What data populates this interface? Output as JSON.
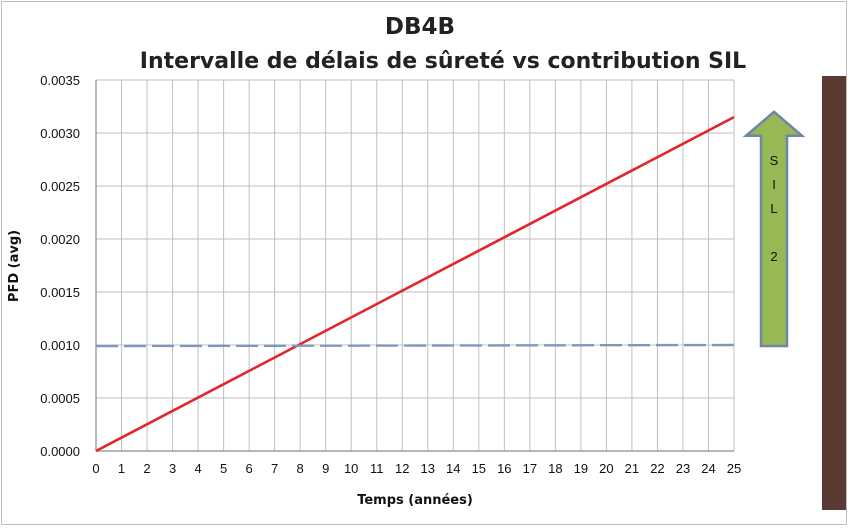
{
  "chart_data": {
    "type": "line",
    "title": "DB4B",
    "subtitle": "Intervalle de délais de sûreté vs contribution SIL",
    "xlabel": "Temps (années)",
    "ylabel": "PFD (avg)",
    "xlim": [
      0,
      25
    ],
    "ylim": [
      0,
      0.0035
    ],
    "x_ticks": [
      "0",
      "1",
      "2",
      "3",
      "4",
      "5",
      "6",
      "7",
      "8",
      "9",
      "10",
      "11",
      "12",
      "13",
      "14",
      "15",
      "16",
      "17",
      "18",
      "19",
      "20",
      "21",
      "22",
      "23",
      "24",
      "25"
    ],
    "y_ticks": [
      "0.0000",
      "0.0005",
      "0.0010",
      "0.0015",
      "0.0020",
      "0.0025",
      "0.0030",
      "0.0035"
    ],
    "y_tick_values": [
      0,
      0.0005,
      0.001,
      0.0015,
      0.002,
      0.0025,
      0.003,
      0.0035
    ],
    "grid": true,
    "series": [
      {
        "x": [
          0,
          25
        ],
        "y": [
          0,
          0.00315
        ],
        "color": "#e3262b",
        "style": "solid"
      },
      {
        "x": [
          0,
          25
        ],
        "y": [
          0.00099,
          0.001
        ],
        "color": "#7f96bd",
        "style": "dashed"
      }
    ],
    "annotation": {
      "type": "arrow-up",
      "letters": [
        "S",
        "I",
        "L",
        "",
        "2"
      ],
      "fill": "#97b955",
      "stroke": "#6f86a6",
      "y_range": [
        0.00099,
        0.0032
      ]
    }
  },
  "colors": {
    "grid": "#bfbfbf",
    "axis": "#8c8c8c",
    "right_bar": "#5a3a33"
  }
}
